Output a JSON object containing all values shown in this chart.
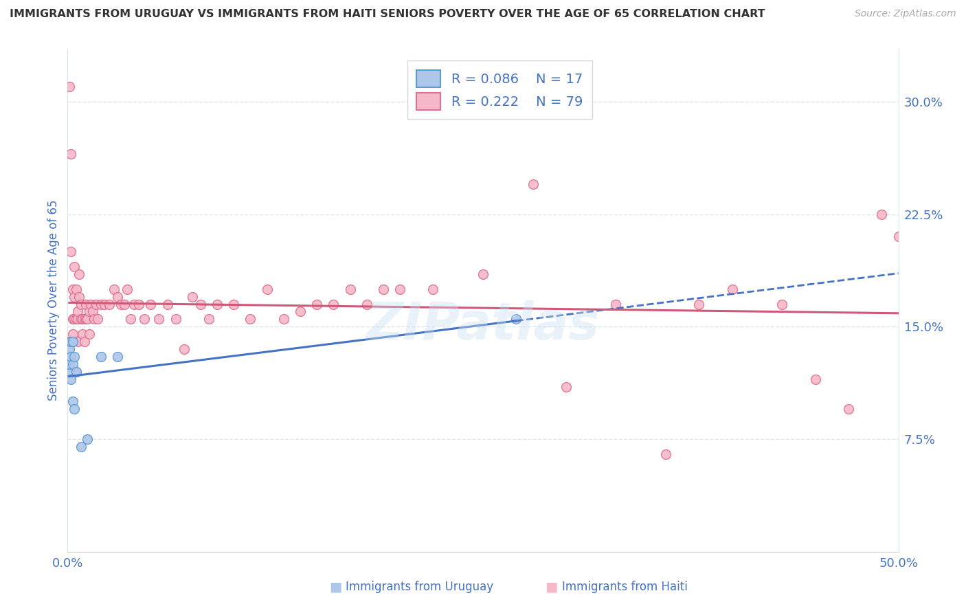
{
  "title": "IMMIGRANTS FROM URUGUAY VS IMMIGRANTS FROM HAITI SENIORS POVERTY OVER THE AGE OF 65 CORRELATION CHART",
  "source": "Source: ZipAtlas.com",
  "ylabel": "Seniors Poverty Over the Age of 65",
  "xlim": [
    0.0,
    0.5
  ],
  "ylim": [
    0.0,
    0.335
  ],
  "yticks_right": [
    0.075,
    0.15,
    0.225,
    0.3
  ],
  "ytick_right_labels": [
    "7.5%",
    "15.0%",
    "22.5%",
    "30.0%"
  ],
  "legend_R_uruguay": "0.086",
  "legend_N_uruguay": "17",
  "legend_R_haiti": "0.222",
  "legend_N_haiti": "79",
  "color_uruguay_fill": "#aec6e8",
  "color_uruguay_edge": "#5b9bd5",
  "color_haiti_fill": "#f5b8c8",
  "color_haiti_edge": "#e07090",
  "color_line_uruguay": "#4472c4",
  "color_line_haiti": "#d05878",
  "color_tick_labels": "#4472c4",
  "color_title": "#333333",
  "color_source": "#aaaaaa",
  "color_grid": "#dce6f1",
  "watermark": "ZIPatlas",
  "background_color": "#ffffff",
  "uruguay_x": [
    0.001,
    0.001,
    0.001,
    0.002,
    0.002,
    0.002,
    0.003,
    0.003,
    0.003,
    0.004,
    0.004,
    0.005,
    0.008,
    0.012,
    0.02,
    0.03,
    0.27
  ],
  "uruguay_y": [
    0.12,
    0.125,
    0.135,
    0.115,
    0.13,
    0.14,
    0.1,
    0.125,
    0.14,
    0.095,
    0.13,
    0.12,
    0.07,
    0.075,
    0.13,
    0.13,
    0.155
  ],
  "haiti_x": [
    0.001,
    0.001,
    0.002,
    0.002,
    0.003,
    0.003,
    0.003,
    0.004,
    0.004,
    0.004,
    0.005,
    0.005,
    0.005,
    0.006,
    0.006,
    0.006,
    0.007,
    0.007,
    0.008,
    0.008,
    0.009,
    0.009,
    0.01,
    0.01,
    0.011,
    0.011,
    0.012,
    0.013,
    0.013,
    0.014,
    0.015,
    0.016,
    0.017,
    0.018,
    0.02,
    0.022,
    0.025,
    0.028,
    0.03,
    0.032,
    0.034,
    0.036,
    0.038,
    0.04,
    0.043,
    0.046,
    0.05,
    0.055,
    0.06,
    0.065,
    0.07,
    0.075,
    0.08,
    0.085,
    0.09,
    0.1,
    0.11,
    0.12,
    0.13,
    0.14,
    0.15,
    0.16,
    0.17,
    0.18,
    0.19,
    0.2,
    0.22,
    0.25,
    0.28,
    0.3,
    0.33,
    0.36,
    0.38,
    0.4,
    0.43,
    0.45,
    0.47,
    0.49,
    0.5
  ],
  "haiti_y": [
    0.31,
    0.14,
    0.2,
    0.265,
    0.145,
    0.155,
    0.175,
    0.155,
    0.17,
    0.19,
    0.155,
    0.175,
    0.12,
    0.14,
    0.155,
    0.16,
    0.17,
    0.185,
    0.155,
    0.165,
    0.155,
    0.145,
    0.155,
    0.14,
    0.165,
    0.155,
    0.155,
    0.16,
    0.145,
    0.165,
    0.16,
    0.155,
    0.165,
    0.155,
    0.165,
    0.165,
    0.165,
    0.175,
    0.17,
    0.165,
    0.165,
    0.175,
    0.155,
    0.165,
    0.165,
    0.155,
    0.165,
    0.155,
    0.165,
    0.155,
    0.135,
    0.17,
    0.165,
    0.155,
    0.165,
    0.165,
    0.155,
    0.175,
    0.155,
    0.16,
    0.165,
    0.165,
    0.175,
    0.165,
    0.175,
    0.175,
    0.175,
    0.185,
    0.245,
    0.11,
    0.165,
    0.065,
    0.165,
    0.175,
    0.165,
    0.115,
    0.095,
    0.225,
    0.21
  ]
}
